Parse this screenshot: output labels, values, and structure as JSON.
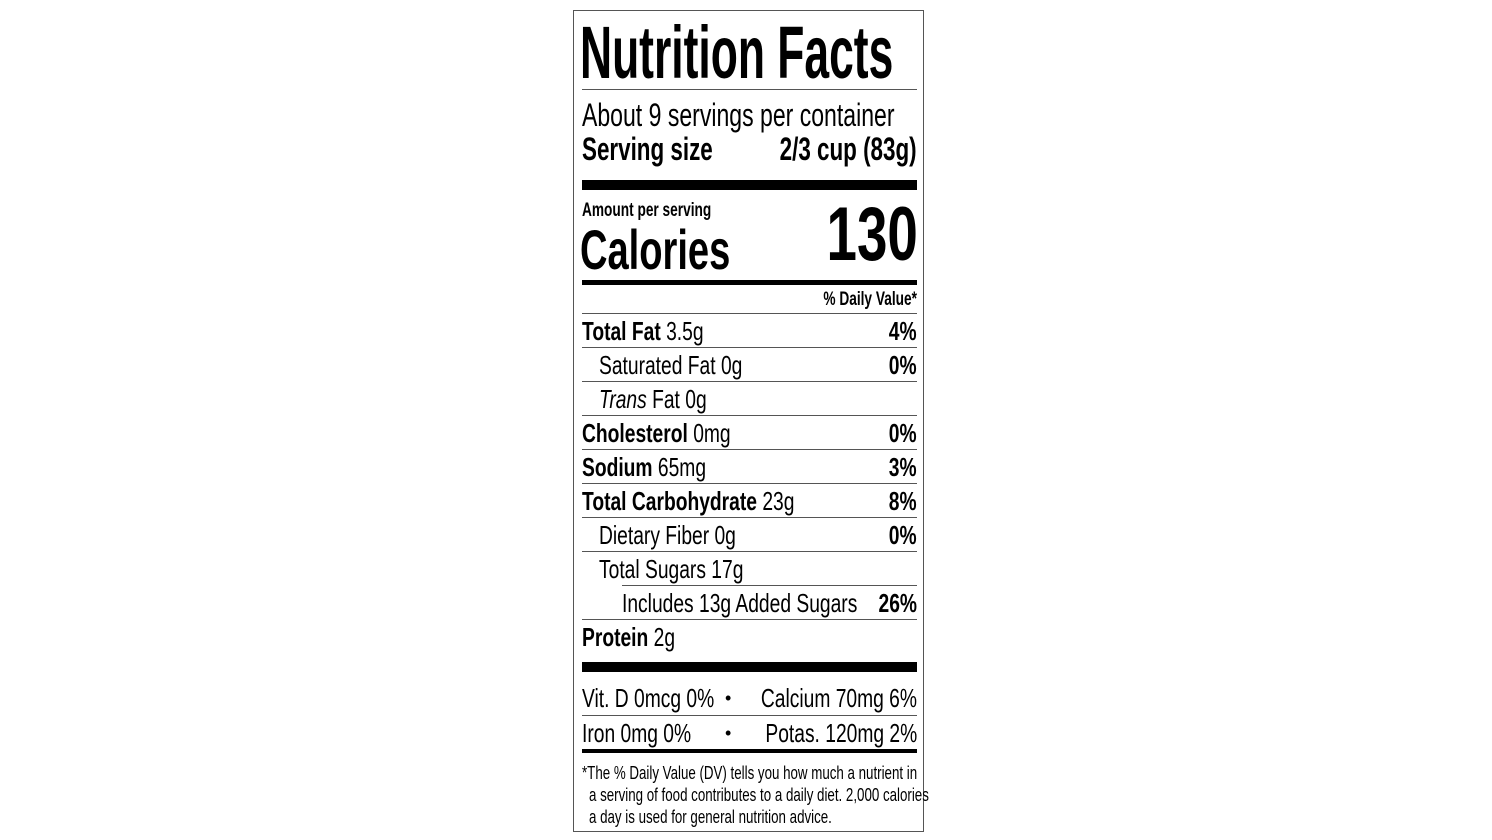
{
  "title": "Nutrition Facts",
  "servings_per_container": "About 9 servings per container",
  "serving_size_label": "Serving size",
  "serving_size_value": "2/3 cup (83g)",
  "amount_per_serving": "Amount per serving",
  "calories_label": "Calories",
  "calories_value": "130",
  "daily_value_header": "% Daily Value*",
  "nutrients": [
    {
      "name": "Total Fat",
      "amount": "3.5g",
      "dv": "4%"
    },
    {
      "name": "Saturated Fat",
      "amount": "0g",
      "dv": "0%"
    },
    {
      "name_italic": "Trans",
      "name": "Fat",
      "amount": "0g",
      "dv": ""
    },
    {
      "name": "Cholesterol",
      "amount": "0mg",
      "dv": "0%"
    },
    {
      "name": "Sodium",
      "amount": "65mg",
      "dv": "3%"
    },
    {
      "name": "Total Carbohydrate",
      "amount": "23g",
      "dv": "8%"
    },
    {
      "name": "Dietary Fiber",
      "amount": "0g",
      "dv": "0%"
    },
    {
      "name": "Total Sugars",
      "amount": "17g",
      "dv": ""
    },
    {
      "name": "Includes 13g Added Sugars",
      "amount": "",
      "dv": "26%"
    },
    {
      "name": "Protein",
      "amount": "2g",
      "dv": ""
    }
  ],
  "micronutrients": [
    {
      "left": "Vit. D 0mcg 0%",
      "separator": "•",
      "right": "Calcium 70mg 6%"
    },
    {
      "left": "Iron 0mg 0%",
      "separator": "•",
      "right": "Potas. 120mg 2%"
    }
  ],
  "footnote": [
    "*The % Daily Value (DV) tells you how much a nutrient in",
    "a serving of food contributes to a daily diet. 2,000 calories",
    "a day is used for general nutrition advice."
  ]
}
